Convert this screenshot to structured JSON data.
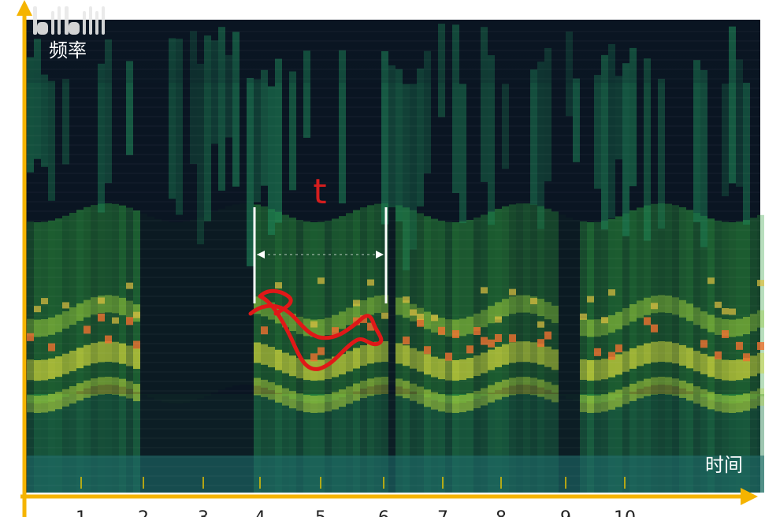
{
  "y_axis": {
    "label": "频率"
  },
  "x_axis": {
    "label": "时间",
    "ticks": [
      "1",
      "2",
      "3",
      "4",
      "5",
      "6",
      "7",
      "8",
      "9",
      "10"
    ]
  },
  "annotation": {
    "label": "t"
  }
}
